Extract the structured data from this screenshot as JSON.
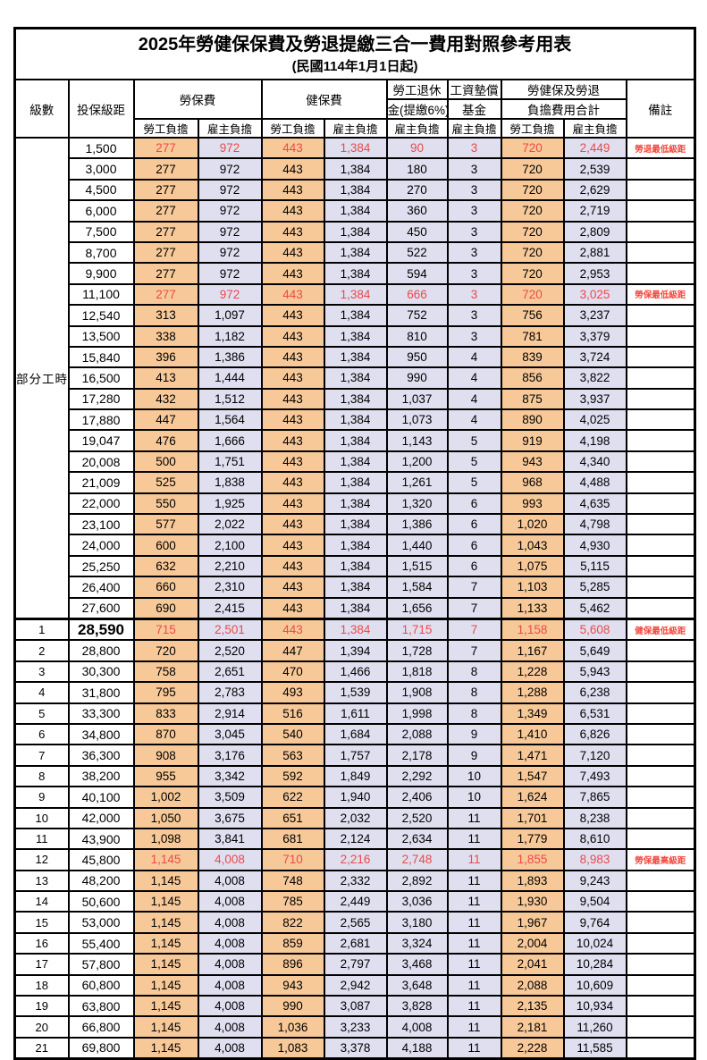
{
  "title": "2025年勞健保保費及勞退提繳三合一費用對照參考用表",
  "subtitle": "(民國114年1月1日起)",
  "header": {
    "level": "級數",
    "bracket": "投保級距",
    "labor": "勞保費",
    "health": "健保費",
    "pension_line1": "勞工退休",
    "pension_line2": "金(提繳6%)",
    "wage_fund_line1": "工資墊償",
    "wage_fund_line2": "基金",
    "total_line1": "勞健保及勞退",
    "total_line2": "負擔費用合計",
    "note": "備註",
    "employee": "勞工負擔",
    "employer": "雇主負擔"
  },
  "part_time_label": "部分工時",
  "part_time_rowspan": 23,
  "colors": {
    "employee_bg": "#F8C998",
    "employer_bg": "#E0DFF0",
    "highlight_red": "#EA4A4A"
  },
  "rows": [
    {
      "level": "",
      "bracket": "1,500",
      "values": [
        "277",
        "972",
        "443",
        "1,384",
        "90",
        "3",
        "720",
        "2,449"
      ],
      "note": "勞退最低級距",
      "hl": true
    },
    {
      "level": "",
      "bracket": "3,000",
      "values": [
        "277",
        "972",
        "443",
        "1,384",
        "180",
        "3",
        "720",
        "2,539"
      ],
      "note": ""
    },
    {
      "level": "",
      "bracket": "4,500",
      "values": [
        "277",
        "972",
        "443",
        "1,384",
        "270",
        "3",
        "720",
        "2,629"
      ],
      "note": ""
    },
    {
      "level": "",
      "bracket": "6,000",
      "values": [
        "277",
        "972",
        "443",
        "1,384",
        "360",
        "3",
        "720",
        "2,719"
      ],
      "note": ""
    },
    {
      "level": "",
      "bracket": "7,500",
      "values": [
        "277",
        "972",
        "443",
        "1,384",
        "450",
        "3",
        "720",
        "2,809"
      ],
      "note": ""
    },
    {
      "level": "",
      "bracket": "8,700",
      "values": [
        "277",
        "972",
        "443",
        "1,384",
        "522",
        "3",
        "720",
        "2,881"
      ],
      "note": ""
    },
    {
      "level": "",
      "bracket": "9,900",
      "values": [
        "277",
        "972",
        "443",
        "1,384",
        "594",
        "3",
        "720",
        "2,953"
      ],
      "note": ""
    },
    {
      "level": "",
      "bracket": "11,100",
      "values": [
        "277",
        "972",
        "443",
        "1,384",
        "666",
        "3",
        "720",
        "3,025"
      ],
      "note": "勞保最低級距",
      "hl": true
    },
    {
      "level": "",
      "bracket": "12,540",
      "values": [
        "313",
        "1,097",
        "443",
        "1,384",
        "752",
        "3",
        "756",
        "3,237"
      ],
      "note": ""
    },
    {
      "level": "",
      "bracket": "13,500",
      "values": [
        "338",
        "1,182",
        "443",
        "1,384",
        "810",
        "3",
        "781",
        "3,379"
      ],
      "note": ""
    },
    {
      "level": "",
      "bracket": "15,840",
      "values": [
        "396",
        "1,386",
        "443",
        "1,384",
        "950",
        "4",
        "839",
        "3,724"
      ],
      "note": ""
    },
    {
      "level": "",
      "bracket": "16,500",
      "values": [
        "413",
        "1,444",
        "443",
        "1,384",
        "990",
        "4",
        "856",
        "3,822"
      ],
      "note": ""
    },
    {
      "level": "",
      "bracket": "17,280",
      "values": [
        "432",
        "1,512",
        "443",
        "1,384",
        "1,037",
        "4",
        "875",
        "3,937"
      ],
      "note": ""
    },
    {
      "level": "",
      "bracket": "17,880",
      "values": [
        "447",
        "1,564",
        "443",
        "1,384",
        "1,073",
        "4",
        "890",
        "4,025"
      ],
      "note": ""
    },
    {
      "level": "",
      "bracket": "19,047",
      "values": [
        "476",
        "1,666",
        "443",
        "1,384",
        "1,143",
        "5",
        "919",
        "4,198"
      ],
      "note": ""
    },
    {
      "level": "",
      "bracket": "20,008",
      "values": [
        "500",
        "1,751",
        "443",
        "1,384",
        "1,200",
        "5",
        "943",
        "4,340"
      ],
      "note": ""
    },
    {
      "level": "",
      "bracket": "21,009",
      "values": [
        "525",
        "1,838",
        "443",
        "1,384",
        "1,261",
        "5",
        "968",
        "4,488"
      ],
      "note": ""
    },
    {
      "level": "",
      "bracket": "22,000",
      "values": [
        "550",
        "1,925",
        "443",
        "1,384",
        "1,320",
        "6",
        "993",
        "4,635"
      ],
      "note": ""
    },
    {
      "level": "",
      "bracket": "23,100",
      "values": [
        "577",
        "2,022",
        "443",
        "1,384",
        "1,386",
        "6",
        "1,020",
        "4,798"
      ],
      "note": ""
    },
    {
      "level": "",
      "bracket": "24,000",
      "values": [
        "600",
        "2,100",
        "443",
        "1,384",
        "1,440",
        "6",
        "1,043",
        "4,930"
      ],
      "note": ""
    },
    {
      "level": "",
      "bracket": "25,250",
      "values": [
        "632",
        "2,210",
        "443",
        "1,384",
        "1,515",
        "6",
        "1,075",
        "5,115"
      ],
      "note": ""
    },
    {
      "level": "",
      "bracket": "26,400",
      "values": [
        "660",
        "2,310",
        "443",
        "1,384",
        "1,584",
        "7",
        "1,103",
        "5,285"
      ],
      "note": ""
    },
    {
      "level": "",
      "bracket": "27,600",
      "values": [
        "690",
        "2,415",
        "443",
        "1,384",
        "1,656",
        "7",
        "1,133",
        "5,462"
      ],
      "note": ""
    },
    {
      "level": "1",
      "bracket": "28,590",
      "values": [
        "715",
        "2,501",
        "443",
        "1,384",
        "1,715",
        "7",
        "1,158",
        "5,608"
      ],
      "note": "健保最低級距",
      "hl": true,
      "sep": true,
      "big": true
    },
    {
      "level": "2",
      "bracket": "28,800",
      "values": [
        "720",
        "2,520",
        "447",
        "1,394",
        "1,728",
        "7",
        "1,167",
        "5,649"
      ],
      "note": ""
    },
    {
      "level": "3",
      "bracket": "30,300",
      "values": [
        "758",
        "2,651",
        "470",
        "1,466",
        "1,818",
        "8",
        "1,228",
        "5,943"
      ],
      "note": ""
    },
    {
      "level": "4",
      "bracket": "31,800",
      "values": [
        "795",
        "2,783",
        "493",
        "1,539",
        "1,908",
        "8",
        "1,288",
        "6,238"
      ],
      "note": ""
    },
    {
      "level": "5",
      "bracket": "33,300",
      "values": [
        "833",
        "2,914",
        "516",
        "1,611",
        "1,998",
        "8",
        "1,349",
        "6,531"
      ],
      "note": ""
    },
    {
      "level": "6",
      "bracket": "34,800",
      "values": [
        "870",
        "3,045",
        "540",
        "1,684",
        "2,088",
        "9",
        "1,410",
        "6,826"
      ],
      "note": ""
    },
    {
      "level": "7",
      "bracket": "36,300",
      "values": [
        "908",
        "3,176",
        "563",
        "1,757",
        "2,178",
        "9",
        "1,471",
        "7,120"
      ],
      "note": ""
    },
    {
      "level": "8",
      "bracket": "38,200",
      "values": [
        "955",
        "3,342",
        "592",
        "1,849",
        "2,292",
        "10",
        "1,547",
        "7,493"
      ],
      "note": ""
    },
    {
      "level": "9",
      "bracket": "40,100",
      "values": [
        "1,002",
        "3,509",
        "622",
        "1,940",
        "2,406",
        "10",
        "1,624",
        "7,865"
      ],
      "note": ""
    },
    {
      "level": "10",
      "bracket": "42,000",
      "values": [
        "1,050",
        "3,675",
        "651",
        "2,032",
        "2,520",
        "11",
        "1,701",
        "8,238"
      ],
      "note": ""
    },
    {
      "level": "11",
      "bracket": "43,900",
      "values": [
        "1,098",
        "3,841",
        "681",
        "2,124",
        "2,634",
        "11",
        "1,779",
        "8,610"
      ],
      "note": ""
    },
    {
      "level": "12",
      "bracket": "45,800",
      "values": [
        "1,145",
        "4,008",
        "710",
        "2,216",
        "2,748",
        "11",
        "1,855",
        "8,983"
      ],
      "note": "勞保最高級距",
      "hl": true
    },
    {
      "level": "13",
      "bracket": "48,200",
      "values": [
        "1,145",
        "4,008",
        "748",
        "2,332",
        "2,892",
        "11",
        "1,893",
        "9,243"
      ],
      "note": ""
    },
    {
      "level": "14",
      "bracket": "50,600",
      "values": [
        "1,145",
        "4,008",
        "785",
        "2,449",
        "3,036",
        "11",
        "1,930",
        "9,504"
      ],
      "note": ""
    },
    {
      "level": "15",
      "bracket": "53,000",
      "values": [
        "1,145",
        "4,008",
        "822",
        "2,565",
        "3,180",
        "11",
        "1,967",
        "9,764"
      ],
      "note": ""
    },
    {
      "level": "16",
      "bracket": "55,400",
      "values": [
        "1,145",
        "4,008",
        "859",
        "2,681",
        "3,324",
        "11",
        "2,004",
        "10,024"
      ],
      "note": ""
    },
    {
      "level": "17",
      "bracket": "57,800",
      "values": [
        "1,145",
        "4,008",
        "896",
        "2,797",
        "3,468",
        "11",
        "2,041",
        "10,284"
      ],
      "note": ""
    },
    {
      "level": "18",
      "bracket": "60,800",
      "values": [
        "1,145",
        "4,008",
        "943",
        "2,942",
        "3,648",
        "11",
        "2,088",
        "10,609"
      ],
      "note": ""
    },
    {
      "level": "19",
      "bracket": "63,800",
      "values": [
        "1,145",
        "4,008",
        "990",
        "3,087",
        "3,828",
        "11",
        "2,135",
        "10,934"
      ],
      "note": ""
    },
    {
      "level": "20",
      "bracket": "66,800",
      "values": [
        "1,145",
        "4,008",
        "1,036",
        "3,233",
        "4,008",
        "11",
        "2,181",
        "11,260"
      ],
      "note": ""
    },
    {
      "level": "21",
      "bracket": "69,800",
      "values": [
        "1,145",
        "4,008",
        "1,083",
        "3,378",
        "4,188",
        "11",
        "2,228",
        "11,585"
      ],
      "note": ""
    }
  ]
}
